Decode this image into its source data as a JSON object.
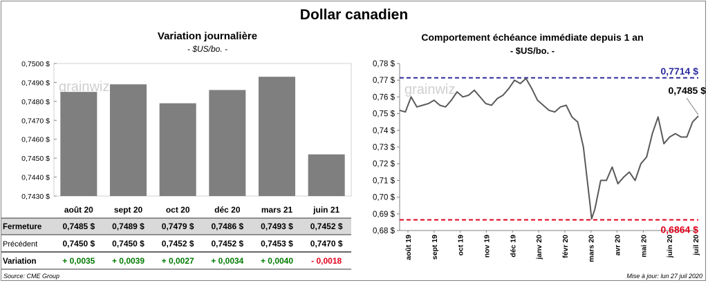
{
  "title": "Dollar canadien",
  "source": "Source: CME Group",
  "update": "Mise à jour: lun 27 juil 2020",
  "watermark": "grainwiz",
  "colors": {
    "bar": "#7f7f7f",
    "line": "#595959",
    "high": "#2b2b9f",
    "low": "#e0001b",
    "positive": "#007a00",
    "negative": "#e0001b",
    "table_shade": "#d9d9d9"
  },
  "chart_data": [
    {
      "type": "bar",
      "title": "Variation  journalière",
      "subtitle": "- $US/bo. -",
      "categories": [
        "août 20",
        "sept 20",
        "oct 20",
        "déc 20",
        "mars 21",
        "juin 21"
      ],
      "values": [
        0.7485,
        0.7489,
        0.7479,
        0.7486,
        0.7493,
        0.7452
      ],
      "ylim": [
        0.743,
        0.75
      ],
      "yticks": [
        "0,7430 $",
        "0,7440 $",
        "0,7450 $",
        "0,7460 $",
        "0,7470 $",
        "0,7480 $",
        "0,7490 $",
        "0,7500 $"
      ],
      "table": {
        "rows": [
          {
            "label": "Fermeture",
            "cells": [
              "0,7485  $",
              "0,7489  $",
              "0,7479  $",
              "0,7486  $",
              "0,7493  $",
              "0,7452  $"
            ]
          },
          {
            "label": "Précédent",
            "cells": [
              "0,7450  $",
              "0,7450  $",
              "0,7452  $",
              "0,7452  $",
              "0,7453  $",
              "0,7470  $"
            ]
          },
          {
            "label": "Variation",
            "cells": [
              "+ 0,0035",
              "+ 0,0039",
              "+ 0,0027",
              "+ 0,0034",
              "+ 0,0040",
              "- 0,0018"
            ],
            "signs": [
              1,
              1,
              1,
              1,
              1,
              -1
            ]
          }
        ]
      }
    },
    {
      "type": "line",
      "title": "Comportement échéance immédiate depuis 1 an",
      "subtitle": "- $US/bo. -",
      "ylim": [
        0.68,
        0.78
      ],
      "yticks": [
        "0,68 $",
        "0,69 $",
        "0,70 $",
        "0,71 $",
        "0,72 $",
        "0,73 $",
        "0,74 $",
        "0,75 $",
        "0,76 $",
        "0,77 $",
        "0,78 $"
      ],
      "xticks": [
        "août 19",
        "sept 19",
        "oct 19",
        "nov 19",
        "déc 19",
        "janv 20",
        "févr 20",
        "mars 20",
        "avr 20",
        "mai 20",
        "juin 20",
        "juil 20"
      ],
      "x": [
        "2019-07-29",
        "2019-08-05",
        "2019-08-12",
        "2019-08-19",
        "2019-08-26",
        "2019-09-02",
        "2019-09-09",
        "2019-09-16",
        "2019-09-23",
        "2019-09-30",
        "2019-10-07",
        "2019-10-14",
        "2019-10-21",
        "2019-10-28",
        "2019-11-04",
        "2019-11-11",
        "2019-11-18",
        "2019-11-25",
        "2019-12-02",
        "2019-12-09",
        "2019-12-16",
        "2019-12-23",
        "2019-12-30",
        "2020-01-06",
        "2020-01-13",
        "2020-01-20",
        "2020-01-27",
        "2020-02-03",
        "2020-02-10",
        "2020-02-17",
        "2020-02-24",
        "2020-03-02",
        "2020-03-09",
        "2020-03-16",
        "2020-03-19",
        "2020-03-23",
        "2020-03-30",
        "2020-04-06",
        "2020-04-13",
        "2020-04-20",
        "2020-04-27",
        "2020-05-04",
        "2020-05-11",
        "2020-05-18",
        "2020-05-25",
        "2020-06-01",
        "2020-06-08",
        "2020-06-15",
        "2020-06-22",
        "2020-06-29",
        "2020-07-06",
        "2020-07-13",
        "2020-07-20",
        "2020-07-27"
      ],
      "series": [
        {
          "values": [
            0.752,
            0.751,
            0.76,
            0.754,
            0.755,
            0.756,
            0.758,
            0.755,
            0.754,
            0.758,
            0.763,
            0.76,
            0.761,
            0.764,
            0.76,
            0.756,
            0.755,
            0.759,
            0.761,
            0.765,
            0.77,
            0.768,
            0.771,
            0.765,
            0.758,
            0.755,
            0.752,
            0.751,
            0.754,
            0.755,
            0.748,
            0.745,
            0.73,
            0.7,
            0.687,
            0.693,
            0.71,
            0.71,
            0.718,
            0.708,
            0.712,
            0.715,
            0.71,
            0.72,
            0.724,
            0.738,
            0.748,
            0.732,
            0.736,
            0.738,
            0.736,
            0.736,
            0.745,
            0.7485
          ]
        }
      ],
      "high": {
        "value": 0.7714,
        "label": "0,7714  $"
      },
      "low": {
        "value": 0.6864,
        "label": "0,6864  $"
      },
      "last_label": "0,7485 $"
    }
  ]
}
